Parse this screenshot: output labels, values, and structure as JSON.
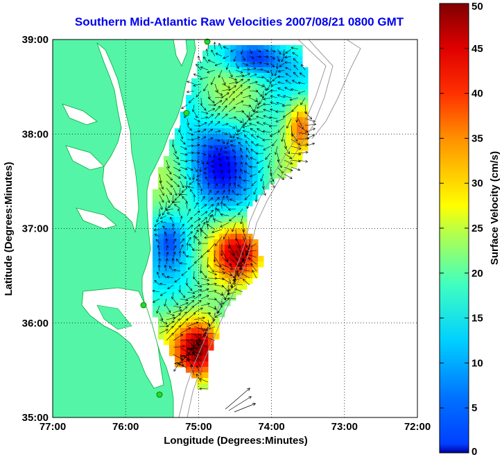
{
  "title": "Southern Mid-Atlantic Raw Velocities 2007/08/21 0800 GMT",
  "map": {
    "xlabel": "Longitude (Degrees:Minutes)",
    "ylabel": "Latitude (Degrees:Minutes)",
    "lon_ticks": [
      "77:00",
      "76:00",
      "75:00",
      "74:00",
      "73:00",
      "72:00"
    ],
    "lat_ticks": [
      "39:00",
      "38:00",
      "37:00",
      "36:00",
      "35:00"
    ],
    "lon_range": [
      -77.0,
      -72.0
    ],
    "lat_range": [
      35.0,
      39.0
    ],
    "land_color": "#55f5a8",
    "grid": "dotted"
  },
  "colorbar": {
    "label": "Surface Velocity (cm/s)",
    "ticks": [
      "0",
      "5",
      "10",
      "15",
      "20",
      "25",
      "30",
      "35",
      "40",
      "45",
      "50"
    ],
    "range": [
      0,
      50
    ],
    "colormap": "jet"
  },
  "stations_icon": "green-circle",
  "vector_icon": "arrow"
}
